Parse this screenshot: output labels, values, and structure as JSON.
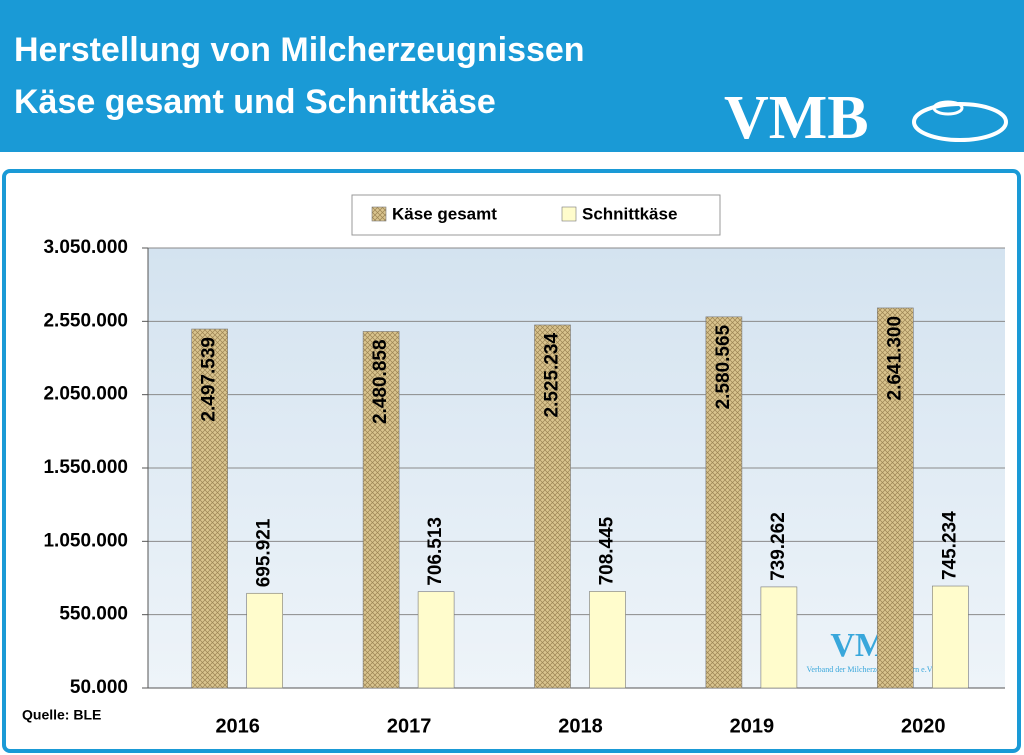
{
  "logo": "VMB",
  "chart_data": {
    "type": "bar",
    "title": "Herstellung von Milcherzeugnissen",
    "subtitle": "Käse gesamt und Schnittkäse",
    "source": "Quelle: BLE",
    "watermark": "VMB",
    "watermark_text": "Verband der Milcherzeuger Bayern e.V.",
    "categories": [
      "2016",
      "2017",
      "2018",
      "2019",
      "2020"
    ],
    "series": [
      {
        "name": "Käse gesamt",
        "color": "#d9c48e",
        "hatch": true,
        "values": [
          2497539,
          2480858,
          2525234,
          2580565,
          2641300
        ],
        "value_labels": [
          "2.497.539",
          "2.480.858",
          "2.525.234",
          "2.580.565",
          "2.641.300"
        ]
      },
      {
        "name": "Schnittkäse",
        "color": "#fffccc",
        "values": [
          695921,
          706513,
          708445,
          739262,
          745234
        ],
        "value_labels": [
          "695.921",
          "706.513",
          "708.445",
          "739.262",
          "745.234"
        ]
      }
    ],
    "ylim": [
      50000,
      3050000
    ],
    "yticks": [
      {
        "value": 50000,
        "label": "50.000"
      },
      {
        "value": 550000,
        "label": "550.000"
      },
      {
        "value": 1050000,
        "label": "1.050.000"
      },
      {
        "value": 1550000,
        "label": "1.550.000"
      },
      {
        "value": 2050000,
        "label": "2.050.000"
      },
      {
        "value": 2550000,
        "label": "2.550.000"
      },
      {
        "value": 3050000,
        "label": "3.050.000"
      }
    ],
    "grid": true,
    "legend": "top"
  }
}
